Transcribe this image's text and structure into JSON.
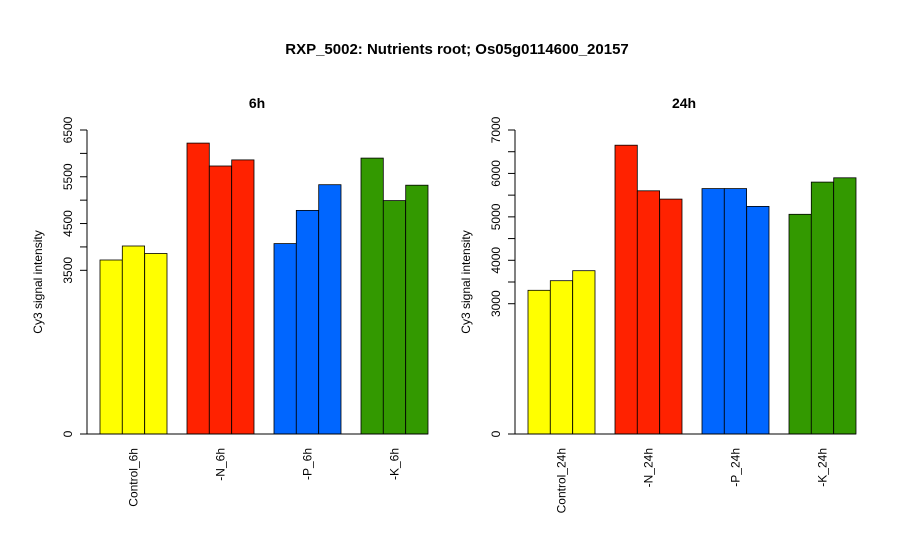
{
  "title": "RXP_5002: Nutrients root; Os05g0114600_20157",
  "chart_data": [
    {
      "type": "bar",
      "title": "6h",
      "ylabel": "Cy3 signal intensity",
      "xlabel": "",
      "ylim": [
        0,
        6500
      ],
      "y_ticks": [
        0,
        3500,
        4500,
        5500,
        6500
      ],
      "categories": [
        "Control_6h",
        "-N_6h",
        "-P_6h",
        "-K_6h"
      ],
      "group_colors": [
        "#ffff00",
        "#ff2200",
        "#0066ff",
        "#339900"
      ],
      "values": [
        [
          3720,
          4020,
          3860
        ],
        [
          6220,
          5730,
          5860
        ],
        [
          4070,
          4780,
          5330
        ],
        [
          5900,
          4990,
          5320
        ]
      ]
    },
    {
      "type": "bar",
      "title": "24h",
      "ylabel": "Cy3 signal intensity",
      "xlabel": "",
      "ylim": [
        0,
        7000
      ],
      "y_ticks": [
        0,
        3000,
        4000,
        5000,
        6000,
        7000
      ],
      "categories": [
        "Control_24h",
        "-N_24h",
        "-P_24h",
        "-K_24h"
      ],
      "group_colors": [
        "#ffff00",
        "#ff2200",
        "#0066ff",
        "#339900"
      ],
      "values": [
        [
          3310,
          3530,
          3760
        ],
        [
          6650,
          5600,
          5410
        ],
        [
          5650,
          5650,
          5240
        ],
        [
          5060,
          5800,
          5900
        ]
      ]
    }
  ]
}
